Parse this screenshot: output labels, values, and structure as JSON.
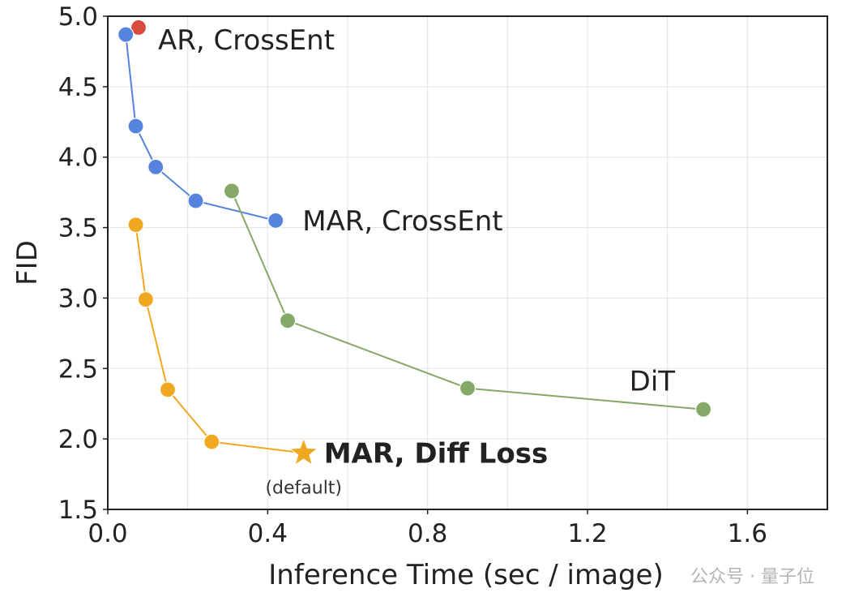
{
  "chart_data": {
    "type": "line",
    "xlabel": "Inference Time (sec / image)",
    "ylabel": "FID",
    "xlim": [
      0.0,
      1.8
    ],
    "ylim": [
      1.5,
      5.0
    ],
    "x_ticks": [
      "0.0",
      "0.4",
      "0.8",
      "1.2",
      "1.6"
    ],
    "y_ticks": [
      "1.5",
      "2.0",
      "2.5",
      "3.0",
      "3.5",
      "4.0",
      "4.5",
      "5.0"
    ],
    "grid": true,
    "series": [
      {
        "name": "AR, CrossEnt",
        "color": "#d94a3f",
        "points": [
          {
            "x": 0.077,
            "y": 4.92
          }
        ]
      },
      {
        "name": "MAR, CrossEnt",
        "color": "#5583dd",
        "points": [
          {
            "x": 0.045,
            "y": 4.87
          },
          {
            "x": 0.07,
            "y": 4.22
          },
          {
            "x": 0.12,
            "y": 3.93
          },
          {
            "x": 0.22,
            "y": 3.69
          },
          {
            "x": 0.42,
            "y": 3.55
          }
        ]
      },
      {
        "name": "DiT",
        "color": "#84a866",
        "points": [
          {
            "x": 0.31,
            "y": 3.76
          },
          {
            "x": 0.45,
            "y": 2.84
          },
          {
            "x": 0.9,
            "y": 2.36
          },
          {
            "x": 1.49,
            "y": 2.21
          }
        ]
      },
      {
        "name": "MAR, Diff Loss",
        "color": "#f0a820",
        "bold": true,
        "star_index": 4,
        "star_label": "(default)",
        "points": [
          {
            "x": 0.07,
            "y": 3.52
          },
          {
            "x": 0.095,
            "y": 2.99
          },
          {
            "x": 0.15,
            "y": 2.35
          },
          {
            "x": 0.26,
            "y": 1.98
          },
          {
            "x": 0.49,
            "y": 1.9
          }
        ]
      }
    ]
  },
  "watermark": "公众号 · 量子位"
}
